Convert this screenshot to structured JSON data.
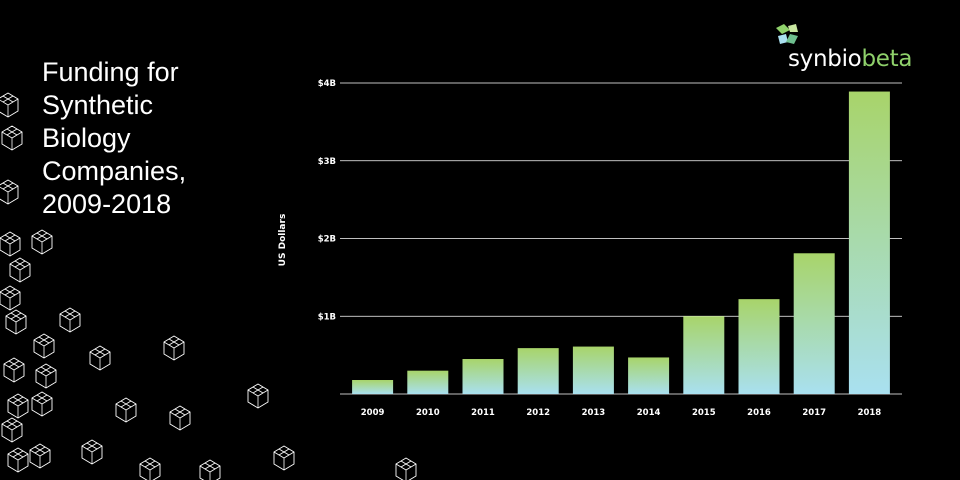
{
  "title_lines": [
    "Funding for",
    "Synthetic",
    "Biology",
    "Companies,",
    "2009-2018"
  ],
  "logo": {
    "text_a": "syn",
    "text_b": "bio",
    "text_c": "beta",
    "accent": "#8fd16b"
  },
  "colors": {
    "background": "#000000",
    "bar_top": "#a8d46a",
    "bar_bottom": "#a9e0f0",
    "gridline": "#ffffff"
  },
  "chart_data": {
    "type": "bar",
    "title": "Funding for Synthetic Biology Companies, 2009-2018",
    "xlabel": "",
    "ylabel": "US Dollars",
    "categories": [
      "2009",
      "2010",
      "2011",
      "2012",
      "2013",
      "2014",
      "2015",
      "2016",
      "2017",
      "2018"
    ],
    "series": [
      {
        "values": [
          0.18,
          0.3,
          0.45,
          0.59,
          0.61,
          0.47,
          1.0,
          1.22,
          1.81,
          3.89
        ]
      }
    ],
    "ylim": [
      0,
      4
    ],
    "yticks": [
      {
        "value": 1,
        "label": "$1B"
      },
      {
        "value": 2,
        "label": "$2B"
      },
      {
        "value": 3,
        "label": "$3B"
      },
      {
        "value": 4,
        "label": "$4B"
      }
    ],
    "grid": true,
    "legend": "none"
  }
}
